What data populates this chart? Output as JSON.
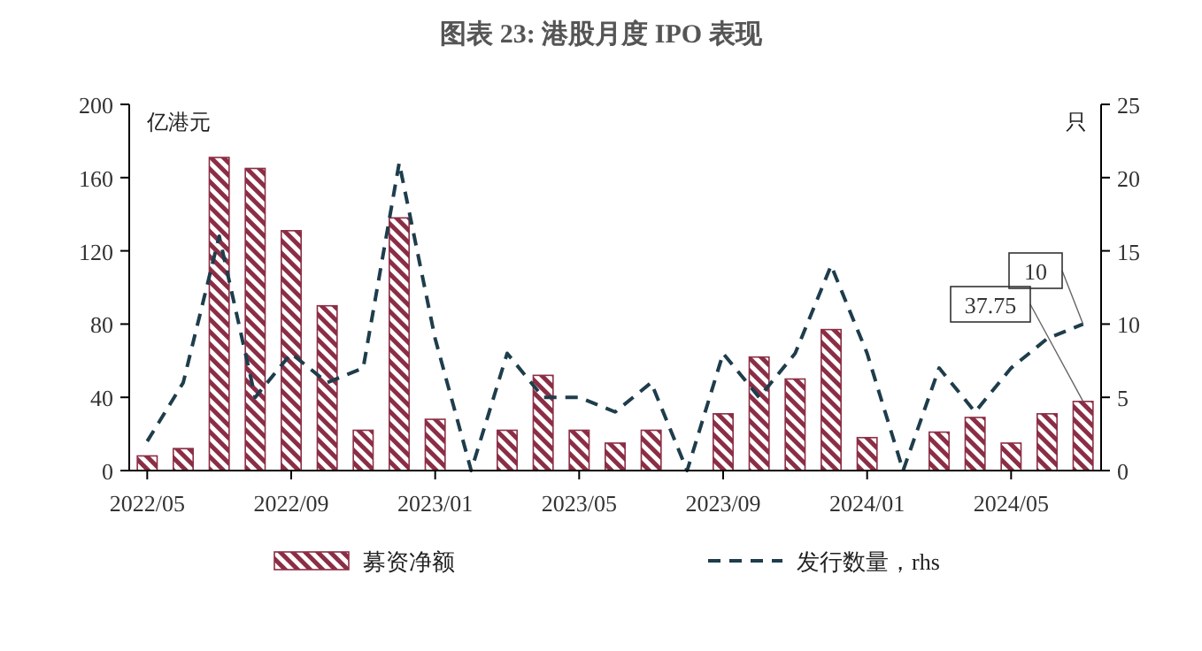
{
  "chart_data": {
    "type": "bar",
    "title": "图表 23: 港股月度 IPO 表现",
    "ylabel": "亿港元",
    "y2label": "只",
    "categories": [
      "2022/05",
      null,
      null,
      null,
      "2022/09",
      null,
      null,
      null,
      "2023/01",
      null,
      null,
      null,
      "2023/05",
      null,
      null,
      null,
      "2023/09",
      null,
      null,
      null,
      "2024/01",
      null,
      null,
      null,
      "2024/05",
      null,
      null
    ],
    "series": [
      {
        "name": "募资净额",
        "color": "#8b2e45",
        "values": [
          8,
          12,
          171,
          165,
          131,
          90,
          22,
          138,
          28,
          0,
          22,
          52,
          22,
          15,
          22,
          0,
          31,
          62,
          50,
          77,
          18,
          0,
          21,
          29,
          15,
          31,
          37.75
        ],
        "value_labels": [
          null,
          null,
          null,
          null,
          null,
          null,
          null,
          null,
          null,
          null,
          null,
          null,
          null,
          null,
          null,
          null,
          null,
          null,
          null,
          null,
          null,
          null,
          null,
          null,
          null,
          null,
          "37.75"
        ]
      },
      {
        "name": "发行数量，rhs",
        "type": "line",
        "axis": "y2",
        "color": "#1e3d4c",
        "line_style": "dashed",
        "values": [
          2,
          6,
          16,
          5,
          8,
          6,
          7,
          21,
          9,
          0,
          8,
          5,
          5,
          4,
          6,
          0,
          8,
          5,
          8,
          14,
          8,
          0,
          7,
          4,
          7,
          9,
          10
        ],
        "value_labels": [
          null,
          null,
          null,
          null,
          null,
          null,
          null,
          null,
          null,
          null,
          null,
          null,
          null,
          null,
          null,
          null,
          null,
          null,
          null,
          null,
          null,
          null,
          null,
          null,
          null,
          null,
          "10"
        ]
      }
    ],
    "ylim": [
      0,
      200
    ],
    "yticks": [
      0,
      40,
      80,
      120,
      160,
      200
    ],
    "y2lim": [
      0,
      25
    ],
    "y2ticks": [
      0,
      5,
      10,
      15,
      20,
      25
    ],
    "legend": "bottom"
  }
}
